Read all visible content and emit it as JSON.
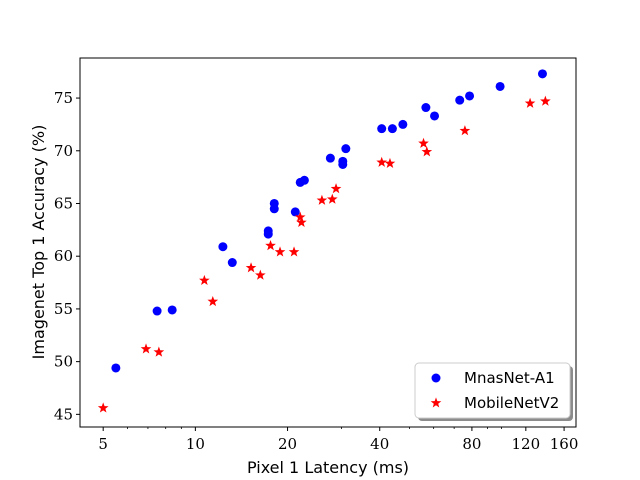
{
  "chart_data": {
    "type": "scatter",
    "title": "",
    "xlabel": "Pixel 1 Latency (ms)",
    "ylabel": "Imagenet Top 1 Accuracy (%)",
    "xscale": "log",
    "xlim": [
      4.2,
      175
    ],
    "ylim": [
      43.8,
      78.8
    ],
    "xticks": [
      5,
      10,
      20,
      40,
      80,
      120,
      160
    ],
    "yticks": [
      45,
      50,
      55,
      60,
      65,
      70,
      75
    ],
    "grid": false,
    "legend_position": "lower-right",
    "series": [
      {
        "name": "MnasNet-A1",
        "marker": "circle",
        "color": "#0000ff",
        "points": [
          [
            5.5,
            49.4
          ],
          [
            7.5,
            54.8
          ],
          [
            8.4,
            54.9
          ],
          [
            12.3,
            60.9
          ],
          [
            13.2,
            59.4
          ],
          [
            17.3,
            62.1
          ],
          [
            17.3,
            62.4
          ],
          [
            18.1,
            64.5
          ],
          [
            18.1,
            65.0
          ],
          [
            21.2,
            64.2
          ],
          [
            22.0,
            67.0
          ],
          [
            22.7,
            67.2
          ],
          [
            27.6,
            69.3
          ],
          [
            30.3,
            68.7
          ],
          [
            30.3,
            69.0
          ],
          [
            31.0,
            70.2
          ],
          [
            40.6,
            72.1
          ],
          [
            44.0,
            72.1
          ],
          [
            47.6,
            72.5
          ],
          [
            56.6,
            74.1
          ],
          [
            60.4,
            73.3
          ],
          [
            73.0,
            74.8
          ],
          [
            78.6,
            75.2
          ],
          [
            98.9,
            76.1
          ],
          [
            136.0,
            77.3
          ]
        ]
      },
      {
        "name": "MobileNetV2",
        "marker": "star",
        "color": "#ff0000",
        "points": [
          [
            5.0,
            45.6
          ],
          [
            6.9,
            51.2
          ],
          [
            7.6,
            50.9
          ],
          [
            10.7,
            57.7
          ],
          [
            11.4,
            55.7
          ],
          [
            15.2,
            58.9
          ],
          [
            16.3,
            58.2
          ],
          [
            17.6,
            61.0
          ],
          [
            18.9,
            60.4
          ],
          [
            21.0,
            60.4
          ],
          [
            22.0,
            63.7
          ],
          [
            22.2,
            63.2
          ],
          [
            25.9,
            65.3
          ],
          [
            28.0,
            65.4
          ],
          [
            28.8,
            66.4
          ],
          [
            40.6,
            68.9
          ],
          [
            43.2,
            68.8
          ],
          [
            55.6,
            70.7
          ],
          [
            57.0,
            69.9
          ],
          [
            75.9,
            71.9
          ],
          [
            123.9,
            74.5
          ],
          [
            139.0,
            74.7
          ]
        ]
      }
    ]
  }
}
